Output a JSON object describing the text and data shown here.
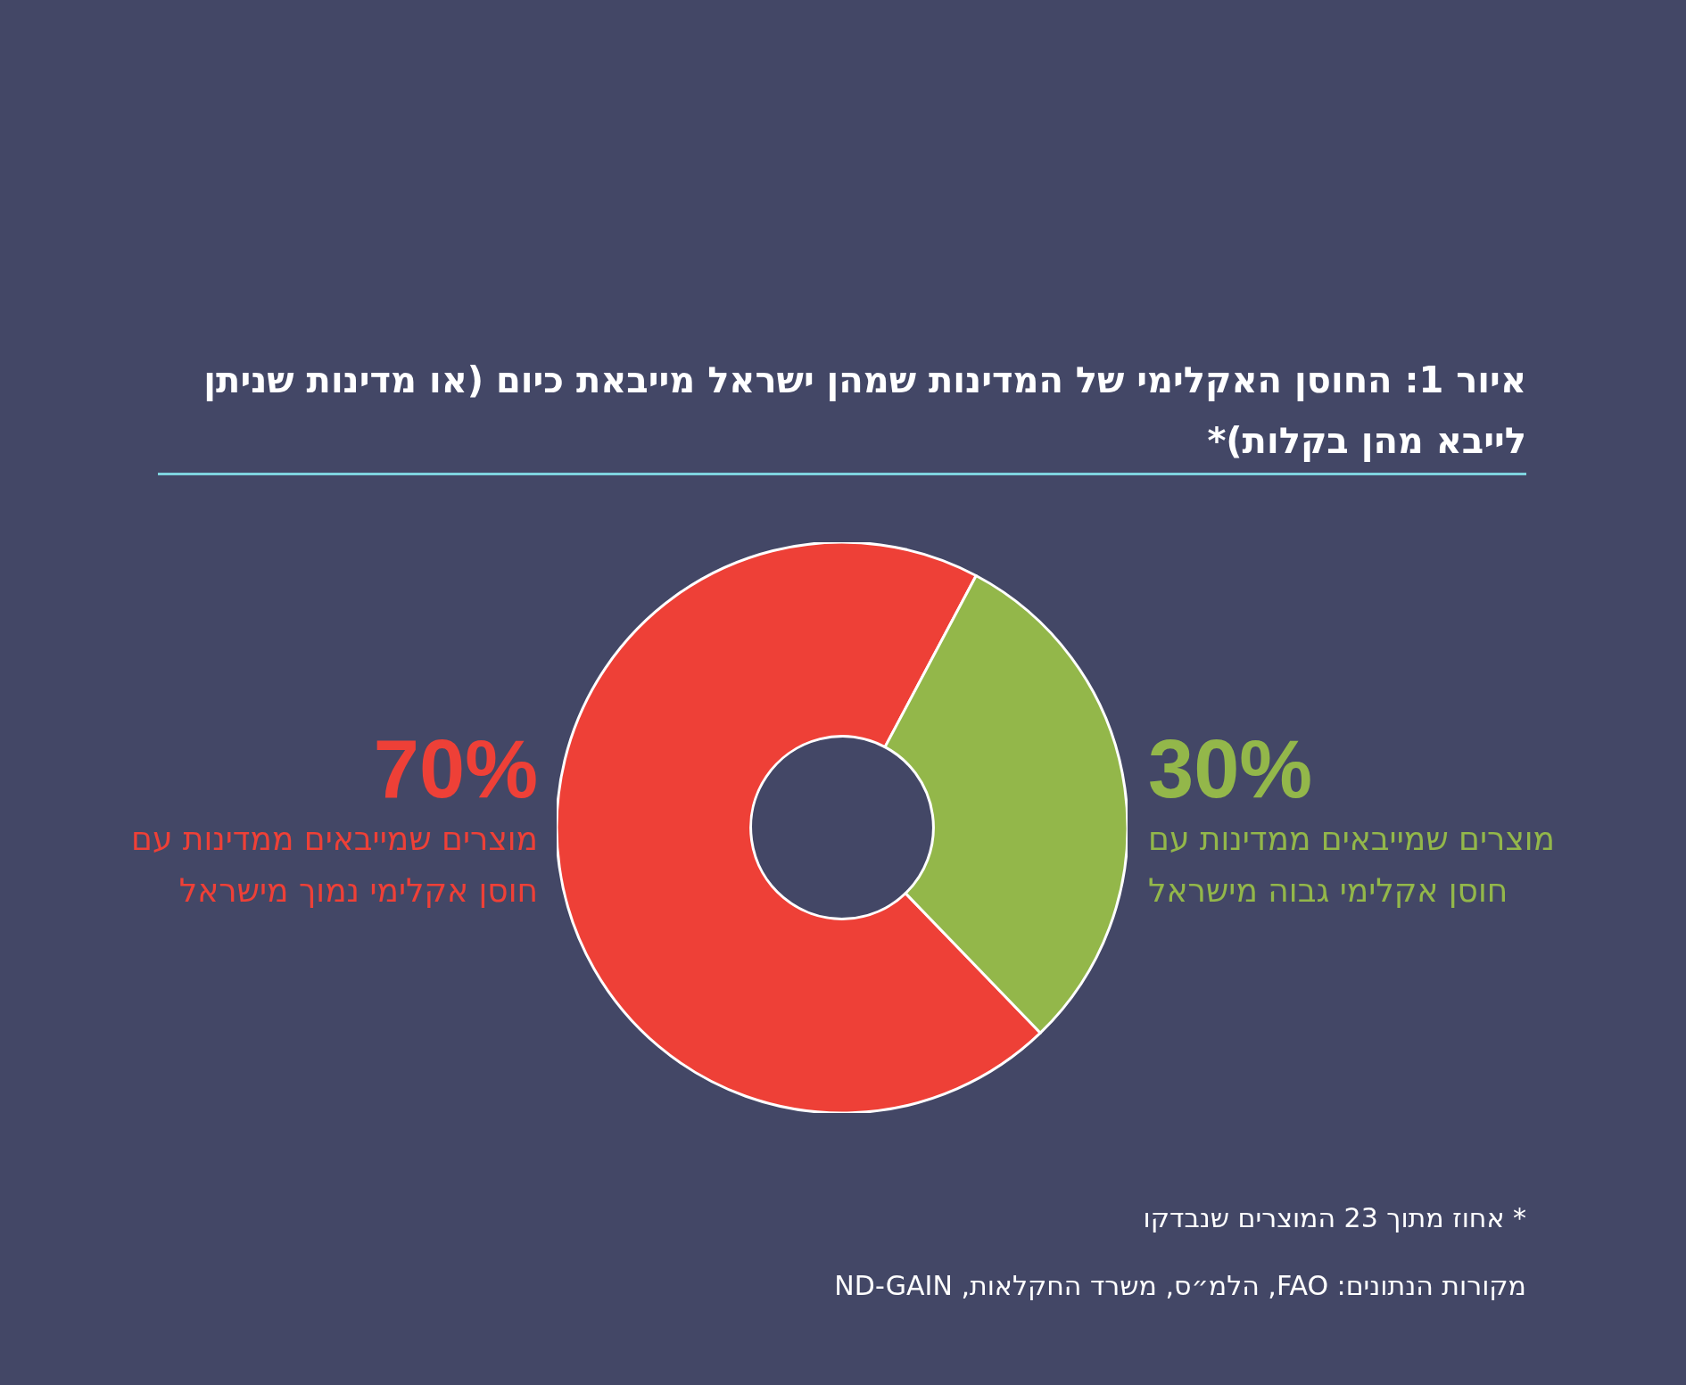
{
  "chart_data": {
    "type": "donut",
    "title": "איור 1: החוסן האקלימי של המדינות שמהן ישראל מייבאת כיום (או מדינות שניתן לייבא מהן בקלות)*",
    "categories": [
      "מוצרים שמייבאים ממדינות עם חוסן אקלימי נמוך מישראל",
      "מוצרים שמייבאים ממדינות עם חוסן אקלימי גבוה מישראל"
    ],
    "values": [
      70,
      30
    ],
    "colors": [
      "#ee4037",
      "#93b74a"
    ],
    "value_labels": [
      "70%",
      "30%"
    ],
    "legend": false,
    "annotations": [
      "* אחוז מתוך 23 המוצרים שנבדקו",
      "מקורות הנתונים: FAO, הלמ״ס, משרד החקלאות, ND-GAIN"
    ]
  }
}
